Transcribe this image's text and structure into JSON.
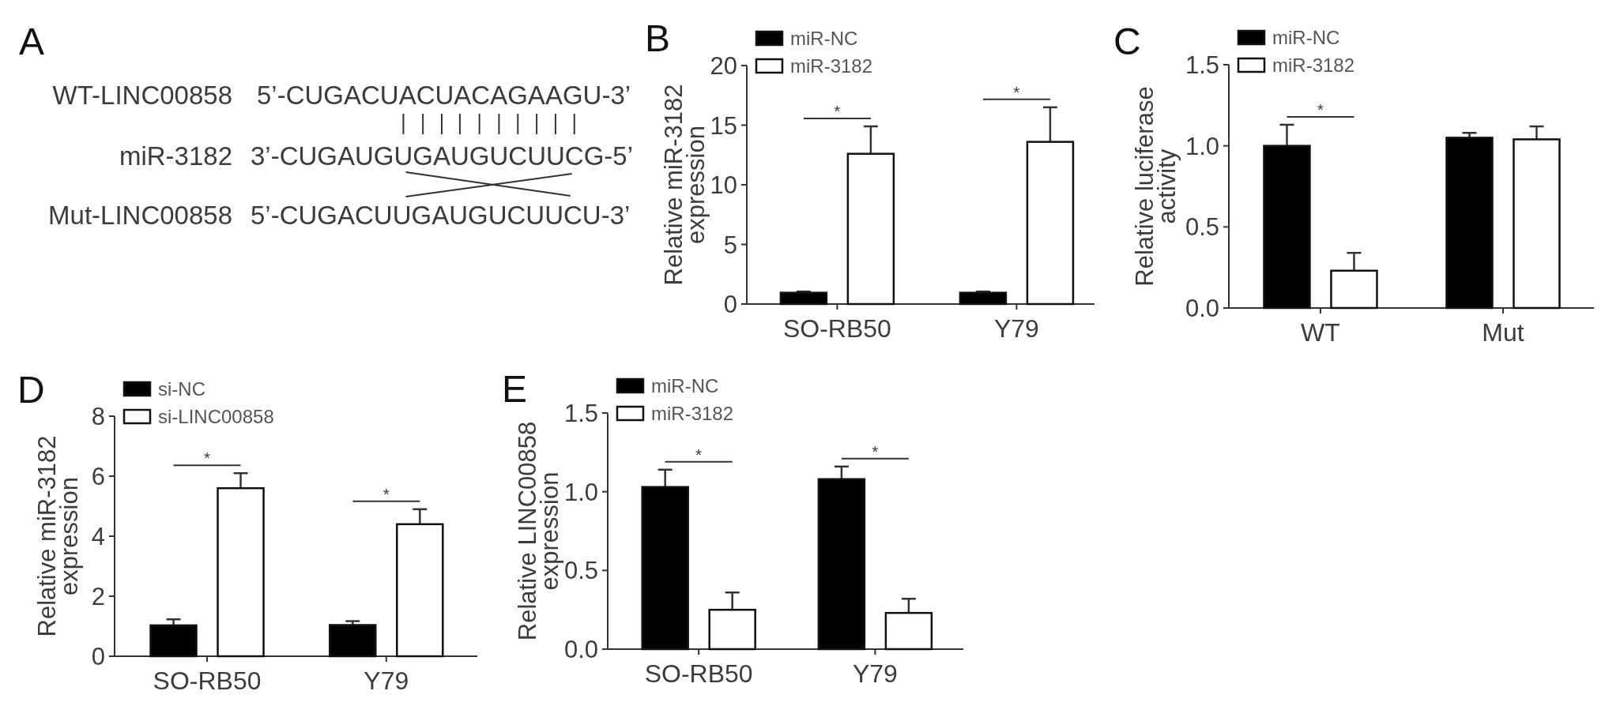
{
  "chart_data": [
    {
      "type": "other",
      "title": "A",
      "annotations": [
        "WT-LINC00858",
        "5’-CUGACUACUACAGAAGU-3’",
        "miR-3182",
        "3’-CUGAUGUGAUGUCUUCG-5’",
        "Mut-LINC00858",
        "5’-CUGACUUGAUGUCUUCU-3’"
      ]
    },
    {
      "type": "bar",
      "title": "B",
      "ylabel": "Relative miR-3182 expression",
      "categories": [
        "SO-RB50",
        "Y79"
      ],
      "series": [
        {
          "name": "miR-NC",
          "color": "#000000",
          "values": [
            0.95,
            0.95
          ],
          "errors": [
            [
              0.95,
              1.05
            ],
            [
              0.95,
              1.05
            ]
          ]
        },
        {
          "name": "miR-3182",
          "color": "#ffffff",
          "values": [
            12.6,
            13.6
          ],
          "errors": [
            [
              12.6,
              14.9
            ],
            [
              13.6,
              16.5
            ]
          ]
        }
      ],
      "ylim": [
        0,
        20
      ],
      "yticks": [
        0,
        5,
        10,
        15,
        20
      ],
      "legend": "top left",
      "annotations": [
        "*",
        "*"
      ]
    },
    {
      "type": "bar",
      "title": "C",
      "ylabel": "Relative luciferase activity",
      "categories": [
        "WT",
        "Mut"
      ],
      "series": [
        {
          "name": "miR-NC",
          "color": "#000000",
          "values": [
            1.0,
            1.05
          ],
          "errors": [
            [
              1.0,
              1.13
            ],
            [
              1.05,
              1.08
            ]
          ]
        },
        {
          "name": "miR-3182",
          "color": "#ffffff",
          "values": [
            0.23,
            1.04
          ],
          "errors": [
            [
              0.23,
              0.34
            ],
            [
              1.04,
              1.12
            ]
          ]
        }
      ],
      "ylim": [
        0,
        1.5
      ],
      "yticks": [
        {
          "value": 0,
          "label": "0.0"
        },
        {
          "value": 0.5,
          "label": "0.5"
        },
        {
          "value": 1,
          "label": "1.0"
        },
        {
          "value": 1.5,
          "label": "1.5"
        }
      ],
      "legend": "top left",
      "annotations": [
        "*"
      ]
    },
    {
      "type": "bar",
      "title": "D",
      "ylabel": "Relative miR-3182 expression",
      "categories": [
        "SO-RB50",
        "Y79"
      ],
      "series": [
        {
          "name": "si-NC",
          "color": "#000000",
          "values": [
            1.03,
            1.04
          ],
          "errors": [
            [
              1.03,
              1.23
            ],
            [
              1.04,
              1.17
            ]
          ]
        },
        {
          "name": "si-LINC00858",
          "color": "#ffffff",
          "values": [
            5.6,
            4.4
          ],
          "errors": [
            [
              5.6,
              6.1
            ],
            [
              4.4,
              4.9
            ]
          ]
        }
      ],
      "ylim": [
        0,
        8
      ],
      "yticks": [
        0,
        2,
        4,
        6,
        8
      ],
      "legend": "top left",
      "annotations": [
        "*",
        "*"
      ]
    },
    {
      "type": "bar",
      "title": "E",
      "ylabel": "Relative LINC00858 expression",
      "categories": [
        "SO-RB50",
        "Y79"
      ],
      "series": [
        {
          "name": "miR-NC",
          "color": "#000000",
          "values": [
            1.03,
            1.08
          ],
          "errors": [
            [
              1.03,
              1.14
            ],
            [
              1.08,
              1.16
            ]
          ]
        },
        {
          "name": "miR-3182",
          "color": "#ffffff",
          "values": [
            0.25,
            0.23
          ],
          "errors": [
            [
              0.25,
              0.36
            ],
            [
              0.23,
              0.32
            ]
          ]
        }
      ],
      "ylim": [
        0,
        1.5
      ],
      "yticks": [
        {
          "value": 0,
          "label": "0.0"
        },
        {
          "value": 0.5,
          "label": "0.5"
        },
        {
          "value": 1,
          "label": "1.0"
        },
        {
          "value": 1.5,
          "label": "1.5"
        }
      ],
      "legend": "top left",
      "annotations": [
        "*",
        "*"
      ]
    }
  ]
}
